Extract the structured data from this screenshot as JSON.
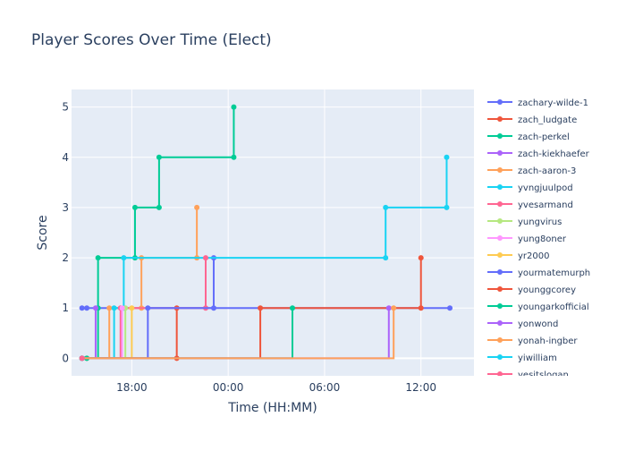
{
  "chart_data": {
    "type": "line",
    "line_shape": "step",
    "title": "Player Scores Over Time (Elect)",
    "xlabel": "Time (HH:MM)",
    "ylabel": "Score",
    "x_unit": "hours",
    "x_ticks": [
      {
        "value": 18,
        "label": "18:00"
      },
      {
        "value": 24,
        "label": "00:00"
      },
      {
        "value": 30,
        "label": "06:00"
      },
      {
        "value": 36,
        "label": "12:00"
      }
    ],
    "y_ticks": [
      0,
      1,
      2,
      3,
      4,
      5
    ],
    "xlim": [
      14.25,
      39.3
    ],
    "ylim": [
      -0.35,
      5.35
    ],
    "grid": true,
    "legend_position": "right",
    "plot_bg": "#e5ecf6",
    "series": [
      {
        "name": "zachary-wilde-1",
        "color": "#636efa",
        "x": [
          14.9,
          15.2,
          23.1,
          23.1
        ],
        "y": [
          1,
          1,
          1,
          2
        ]
      },
      {
        "name": "zach_ludgate",
        "color": "#ef553b",
        "x": [
          14.9,
          15.2,
          20.8,
          20.8
        ],
        "y": [
          0,
          0,
          0,
          1
        ]
      },
      {
        "name": "zach-perkel",
        "color": "#00cc96",
        "x": [
          14.9,
          15.2,
          15.9,
          15.9,
          18.2,
          18.2,
          19.7,
          19.7,
          24.35,
          24.35
        ],
        "y": [
          0,
          0,
          1,
          2,
          2,
          3,
          3,
          4,
          4,
          5
        ]
      },
      {
        "name": "zach-kiekhaefer",
        "color": "#ab63fa",
        "x": [
          14.9,
          15.75
        ],
        "y": [
          0,
          1
        ]
      },
      {
        "name": "zach-aaron-3",
        "color": "#ffa15a",
        "x": [
          14.9,
          16.6,
          18.6,
          18.6,
          22.05,
          22.05
        ],
        "y": [
          0,
          1,
          1,
          2,
          2,
          3
        ]
      },
      {
        "name": "yvngjuulpod",
        "color": "#19d3f3",
        "x": [
          14.9,
          16.9,
          17.5,
          17.5,
          33.8,
          33.8,
          37.6,
          37.6
        ],
        "y": [
          0,
          1,
          1,
          2,
          2,
          3,
          3,
          4
        ]
      },
      {
        "name": "yvesarmand",
        "color": "#ff6692",
        "x": [
          14.9,
          17.3,
          22.6,
          22.6
        ],
        "y": [
          0,
          1,
          1,
          2
        ]
      },
      {
        "name": "yungvirus",
        "color": "#b6e880",
        "x": [
          14.9,
          17.6
        ],
        "y": [
          0,
          1
        ]
      },
      {
        "name": "yung8oner",
        "color": "#ff97ff",
        "x": [
          14.9,
          17.4
        ],
        "y": [
          0,
          1
        ]
      },
      {
        "name": "yr2000",
        "color": "#fecb52",
        "x": [
          14.9,
          18.0
        ],
        "y": [
          0,
          1
        ]
      },
      {
        "name": "yourmatemurph",
        "color": "#636efa",
        "x": [
          14.9,
          19.0,
          37.8
        ],
        "y": [
          0,
          1,
          1
        ]
      },
      {
        "name": "younggcorey",
        "color": "#ef553b",
        "x": [
          14.9,
          26.0,
          36.0,
          36.0
        ],
        "y": [
          0,
          1,
          1,
          2
        ]
      },
      {
        "name": "youngarkofficial",
        "color": "#00cc96",
        "x": [
          14.9,
          28.0
        ],
        "y": [
          0,
          1
        ]
      },
      {
        "name": "yonwond",
        "color": "#ab63fa",
        "x": [
          14.9,
          34.0
        ],
        "y": [
          0,
          1
        ]
      },
      {
        "name": "yonah-ingber",
        "color": "#ffa15a",
        "x": [
          14.9,
          34.3
        ],
        "y": [
          0,
          1
        ]
      },
      {
        "name": "yiwilliam",
        "color": "#19d3f3",
        "x": [
          14.9
        ],
        "y": [
          0
        ]
      },
      {
        "name": "yesitslogan",
        "color": "#ff6692",
        "x": [
          14.9
        ],
        "y": [
          0
        ]
      }
    ]
  }
}
